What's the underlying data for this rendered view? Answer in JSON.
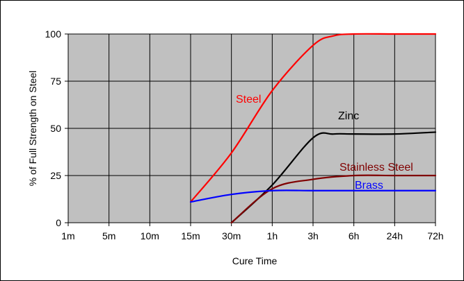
{
  "chart_data": {
    "type": "line",
    "title": "",
    "xlabel": "Cure Time",
    "ylabel": "% of Full Strength on Steel",
    "categories": [
      "1m",
      "5m",
      "10m",
      "15m",
      "30m",
      "1h",
      "3h",
      "6h",
      "24h",
      "72h"
    ],
    "y_ticks": [
      0,
      25,
      50,
      75,
      100
    ],
    "ylim": [
      0,
      100
    ],
    "grid": "vertical and horizontal",
    "legend": "inline labels",
    "plot_background": "#c0c0c0",
    "series": [
      {
        "name": "Steel",
        "color": "#ff0000",
        "points": [
          [
            3,
            11
          ],
          [
            4,
            37
          ],
          [
            5,
            70
          ],
          [
            6,
            94
          ],
          [
            6.5,
            99
          ],
          [
            7,
            100
          ],
          [
            8,
            100
          ],
          [
            9,
            100
          ]
        ]
      },
      {
        "name": "Zinc",
        "color": "#000000",
        "points": [
          [
            4,
            0
          ],
          [
            5,
            20
          ],
          [
            6,
            45
          ],
          [
            6.5,
            47
          ],
          [
            7,
            47
          ],
          [
            8,
            47
          ],
          [
            9,
            48
          ]
        ]
      },
      {
        "name": "Stainless Steel",
        "color": "#800000",
        "points": [
          [
            4,
            0
          ],
          [
            5,
            18
          ],
          [
            6,
            23
          ],
          [
            7,
            25
          ],
          [
            8,
            25
          ],
          [
            9,
            25
          ]
        ]
      },
      {
        "name": "Brass",
        "color": "#0000ff",
        "points": [
          [
            3,
            11
          ],
          [
            4,
            15
          ],
          [
            5,
            17
          ],
          [
            6,
            17
          ],
          [
            7,
            17
          ],
          [
            8,
            17
          ],
          [
            9,
            17
          ]
        ]
      }
    ]
  }
}
